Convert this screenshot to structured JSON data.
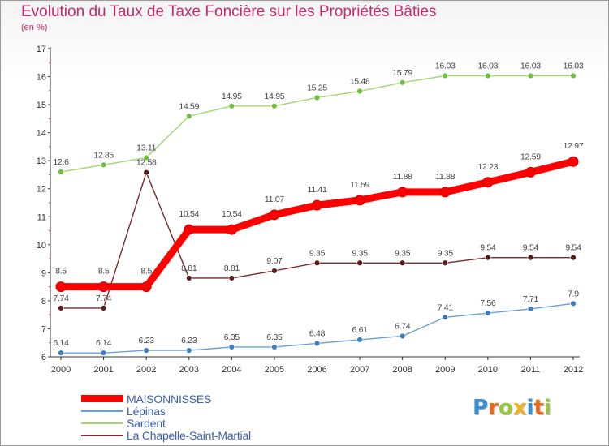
{
  "header": {
    "title": "Evolution du Taux de Taxe Foncière sur les Propriétés Bâties",
    "subtitle": "(en %)"
  },
  "logo": {
    "text": "Proxiti",
    "letters": [
      {
        "ch": "P",
        "color": "#3a8fd9"
      },
      {
        "ch": "r",
        "color": "#e86a1a"
      },
      {
        "ch": "o",
        "color": "#9bc53d"
      },
      {
        "ch": "x",
        "color": "#f2b020"
      },
      {
        "ch": "i",
        "color": "#3a8fd9"
      },
      {
        "ch": "t",
        "color": "#e86a1a"
      },
      {
        "ch": "i",
        "color": "#9bc53d"
      }
    ]
  },
  "chart_data": {
    "type": "line",
    "title": "Evolution du Taux de Taxe Foncière sur les Propriétés Bâties",
    "subtitle": "(en %)",
    "x": [
      "2000",
      "2001",
      "2002",
      "2003",
      "2004",
      "2005",
      "2006",
      "2007",
      "2008",
      "2009",
      "2010",
      "2011",
      "2012"
    ],
    "ylim": [
      6,
      17
    ],
    "yticks": [
      "6",
      "7",
      "8",
      "9",
      "10",
      "11",
      "12",
      "13",
      "14",
      "15",
      "16",
      "17"
    ],
    "grid": false,
    "legend_position": "bottom-left",
    "series": [
      {
        "name": "MAISONNISSES",
        "color": "#ff0000",
        "marker_color": "#ff0000",
        "emphasis": "bold",
        "values": [
          8.5,
          8.5,
          8.5,
          10.54,
          10.54,
          11.07,
          11.41,
          11.59,
          11.88,
          11.88,
          12.23,
          12.59,
          12.97
        ],
        "labels": [
          "8.5",
          "8.5",
          "8.5",
          "10.54",
          "10.54",
          "11.07",
          "11.41",
          "11.59",
          "11.88",
          "11.88",
          "12.23",
          "12.59",
          "12.97"
        ]
      },
      {
        "name": "Lépinas",
        "color": "#6aa0d8",
        "marker_color": "#3a7fc4",
        "emphasis": "thin",
        "values": [
          6.14,
          6.14,
          6.23,
          6.23,
          6.35,
          6.35,
          6.48,
          6.61,
          6.74,
          7.41,
          7.56,
          7.71,
          7.9
        ],
        "labels": [
          "6.14",
          "6.14",
          "6.23",
          "6.23",
          "6.35",
          "6.35",
          "6.48",
          "6.61",
          "6.74",
          "7.41",
          "7.56",
          "7.71",
          "7.9"
        ]
      },
      {
        "name": "Sardent",
        "color": "#9fd870",
        "marker_color": "#6fbf3a",
        "emphasis": "thin",
        "values": [
          12.6,
          12.85,
          13.11,
          14.59,
          14.95,
          14.95,
          15.25,
          15.48,
          15.79,
          16.03,
          16.03,
          16.03,
          16.03
        ],
        "labels": [
          "12.6",
          "12.85",
          "13.11",
          "14.59",
          "14.95",
          "14.95",
          "15.25",
          "15.48",
          "15.79",
          "16.03",
          "16.03",
          "16.03",
          "16.03"
        ]
      },
      {
        "name": "La Chapelle-Saint-Martial",
        "color": "#7a2a2a",
        "marker_color": "#5a1a1a",
        "emphasis": "thin",
        "values": [
          7.74,
          7.74,
          12.58,
          8.81,
          8.81,
          9.07,
          9.35,
          9.35,
          9.35,
          9.35,
          9.54,
          9.54,
          9.54
        ],
        "labels": [
          "7.74",
          "7.74",
          "12.58",
          "8.81",
          "8.81",
          "9.07",
          "9.35",
          "9.35",
          "9.35",
          "9.35",
          "9.54",
          "9.54",
          "9.54"
        ]
      }
    ]
  }
}
